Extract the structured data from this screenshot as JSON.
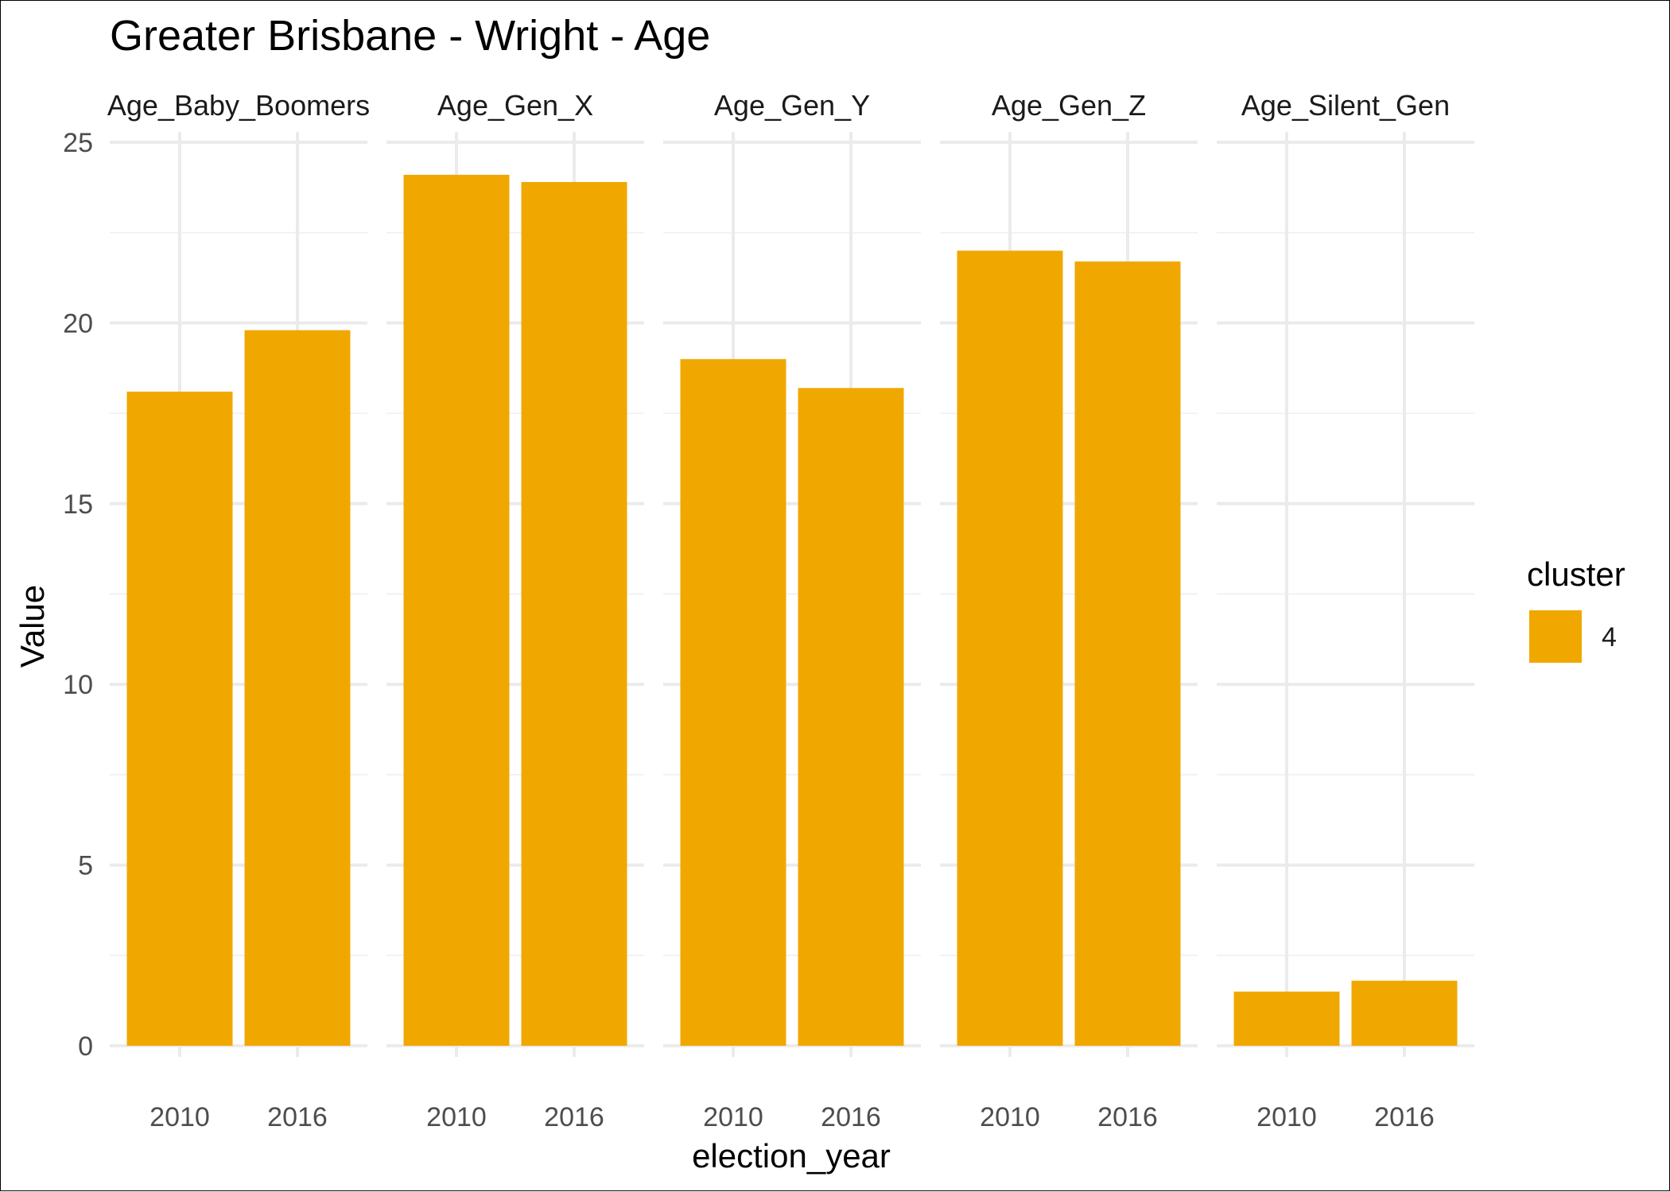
{
  "chart_data": {
    "type": "bar",
    "title": "Greater Brisbane - Wright - Age",
    "xlabel": "election_year",
    "ylabel": "Value",
    "ylim": [
      0,
      25
    ],
    "yticks": [
      0,
      5,
      10,
      15,
      20,
      25
    ],
    "categories": [
      "2010",
      "2016"
    ],
    "facets": [
      {
        "name": "Age_Baby_Boomers",
        "values": [
          18.1,
          19.8
        ]
      },
      {
        "name": "Age_Gen_X",
        "values": [
          24.1,
          23.9
        ]
      },
      {
        "name": "Age_Gen_Y",
        "values": [
          19.0,
          18.2
        ]
      },
      {
        "name": "Age_Gen_Z",
        "values": [
          22.0,
          21.7
        ]
      },
      {
        "name": "Age_Silent_Gen",
        "values": [
          1.5,
          1.8
        ]
      }
    ],
    "legend": {
      "title": "cluster",
      "position": "right",
      "entries": [
        {
          "label": "4",
          "color": "#F0A800"
        }
      ]
    },
    "bar_color": "#F0A800",
    "grid": true
  }
}
